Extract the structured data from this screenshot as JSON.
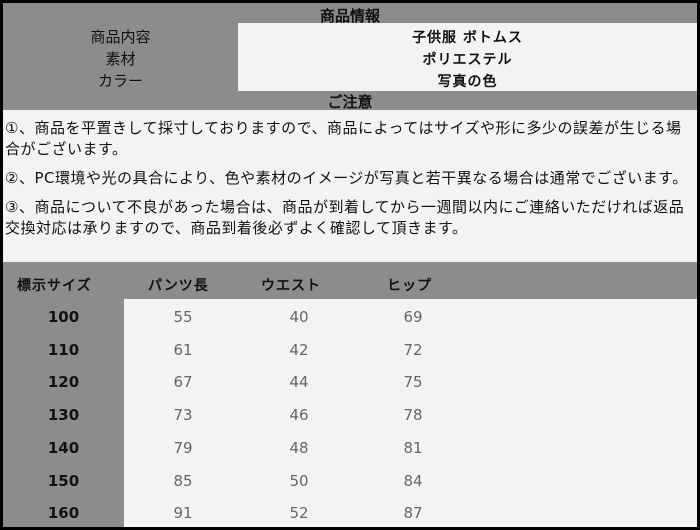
{
  "product_info": {
    "title": "商品情報",
    "rows": [
      {
        "label": "商品内容",
        "value": "子供服 ボトムス"
      },
      {
        "label": "素材",
        "value": "ポリエステル"
      },
      {
        "label": "カラー",
        "value": "写真の色"
      }
    ]
  },
  "notice": {
    "title": "ご注意",
    "items": [
      "①、商品を平置きして採寸しておりますので、商品によってはサイズや形に多少の誤差が生じる場合がございます。",
      "②、PC環境や光の具合により、色や素材のイメージが写真と若干異なる場合は通常でございます。",
      "③、商品について不良があった場合は、商品が到着してから一週間以内にご連絡いただければ返品交換対応は承りますので、商品到着後必ずよく確認して頂きます。"
    ]
  },
  "size_table": {
    "headers": [
      "標示サイズ",
      "パンツ長",
      "ウエスト",
      "ヒップ"
    ],
    "rows": [
      [
        "100",
        "55",
        "40",
        "69"
      ],
      [
        "110",
        "61",
        "42",
        "72"
      ],
      [
        "120",
        "67",
        "44",
        "75"
      ],
      [
        "130",
        "73",
        "46",
        "78"
      ],
      [
        "140",
        "79",
        "48",
        "81"
      ],
      [
        "150",
        "85",
        "50",
        "84"
      ],
      [
        "160",
        "91",
        "52",
        "87"
      ]
    ]
  }
}
